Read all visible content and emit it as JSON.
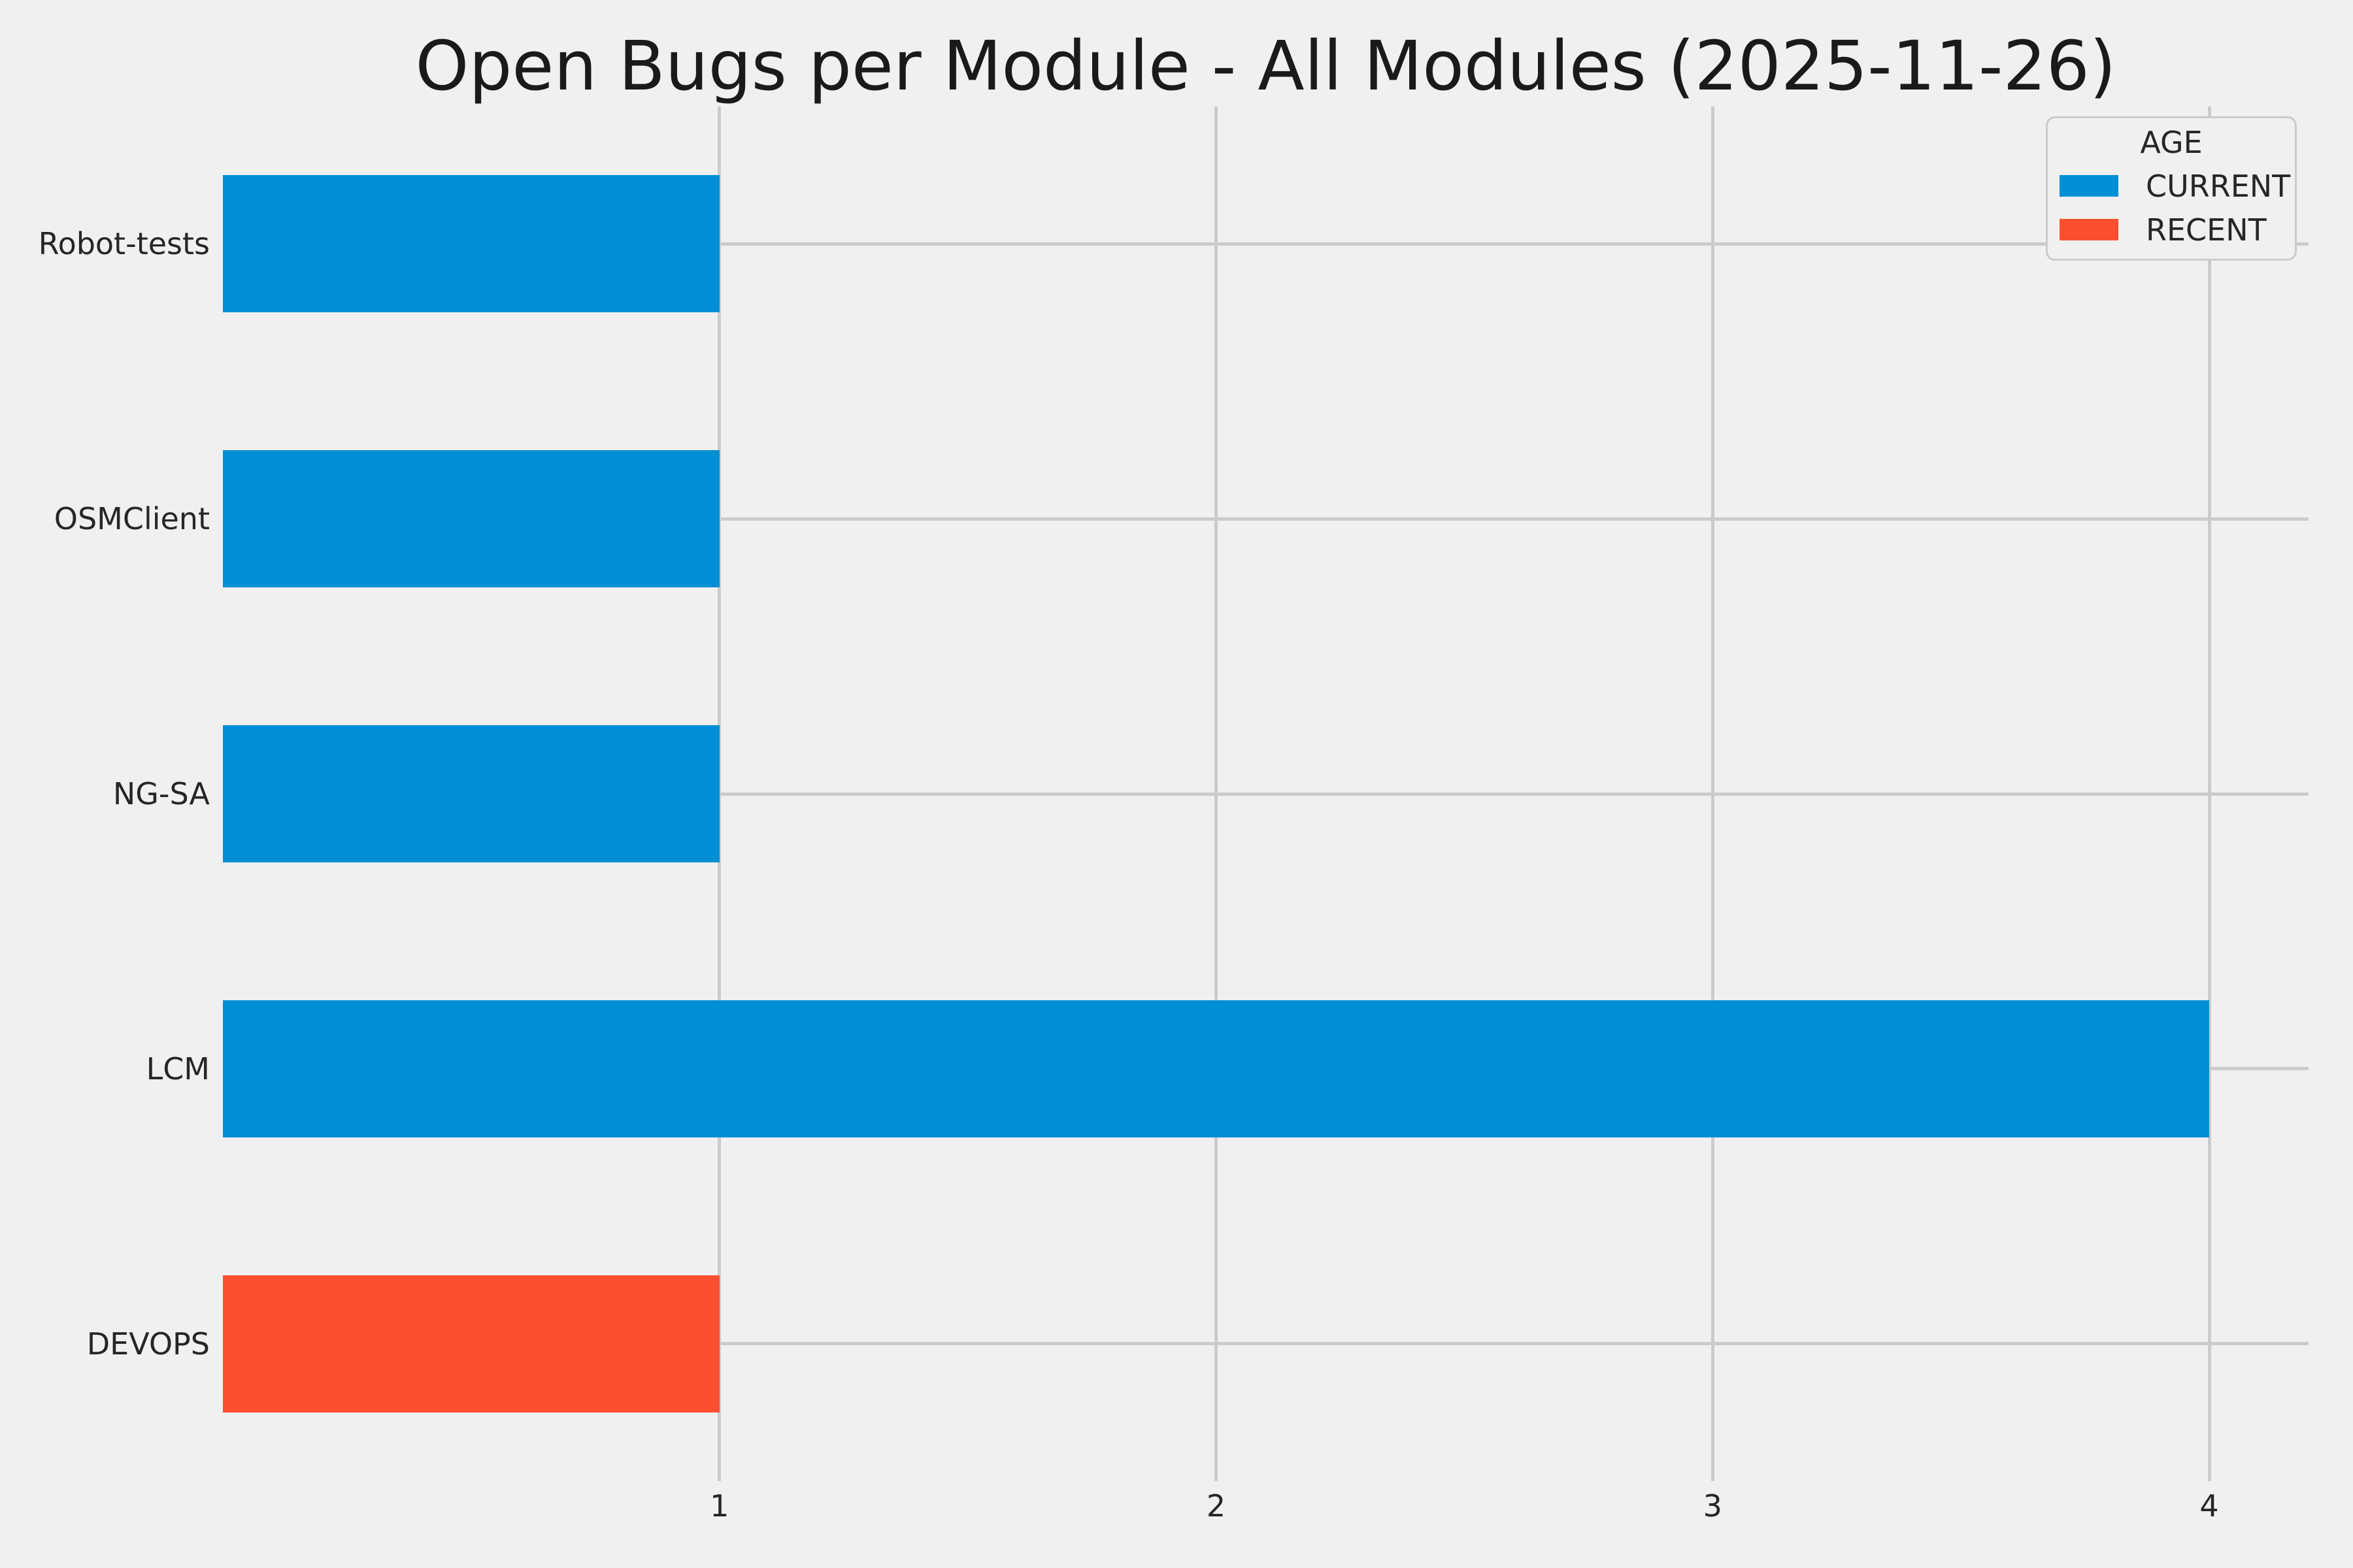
{
  "chart_data": {
    "type": "bar",
    "orientation": "horizontal",
    "title": "Open Bugs per Module - All Modules (2025-11-26)",
    "categories": [
      "Robot-tests",
      "OSMClient",
      "NG-SA",
      "LCM",
      "DEVOPS"
    ],
    "values": [
      1,
      1,
      1,
      4,
      1
    ],
    "bar_ages": [
      "CURRENT",
      "CURRENT",
      "CURRENT",
      "CURRENT",
      "RECENT"
    ],
    "xlabel": "",
    "ylabel": "",
    "xlim": [
      0,
      4.2
    ],
    "xticks": [
      "1",
      "2",
      "3",
      "4"
    ],
    "grid": true,
    "legend": {
      "title": "AGE",
      "position": "upper right",
      "entries": [
        {
          "label": "CURRENT",
          "color": "#008fd5"
        },
        {
          "label": "RECENT",
          "color": "#fc4f30"
        }
      ]
    },
    "colors": {
      "background": "#f0f0f0",
      "gridline": "#cbcbcb",
      "text": "#262626",
      "current": "#008fd5",
      "recent": "#fc4f30"
    }
  }
}
